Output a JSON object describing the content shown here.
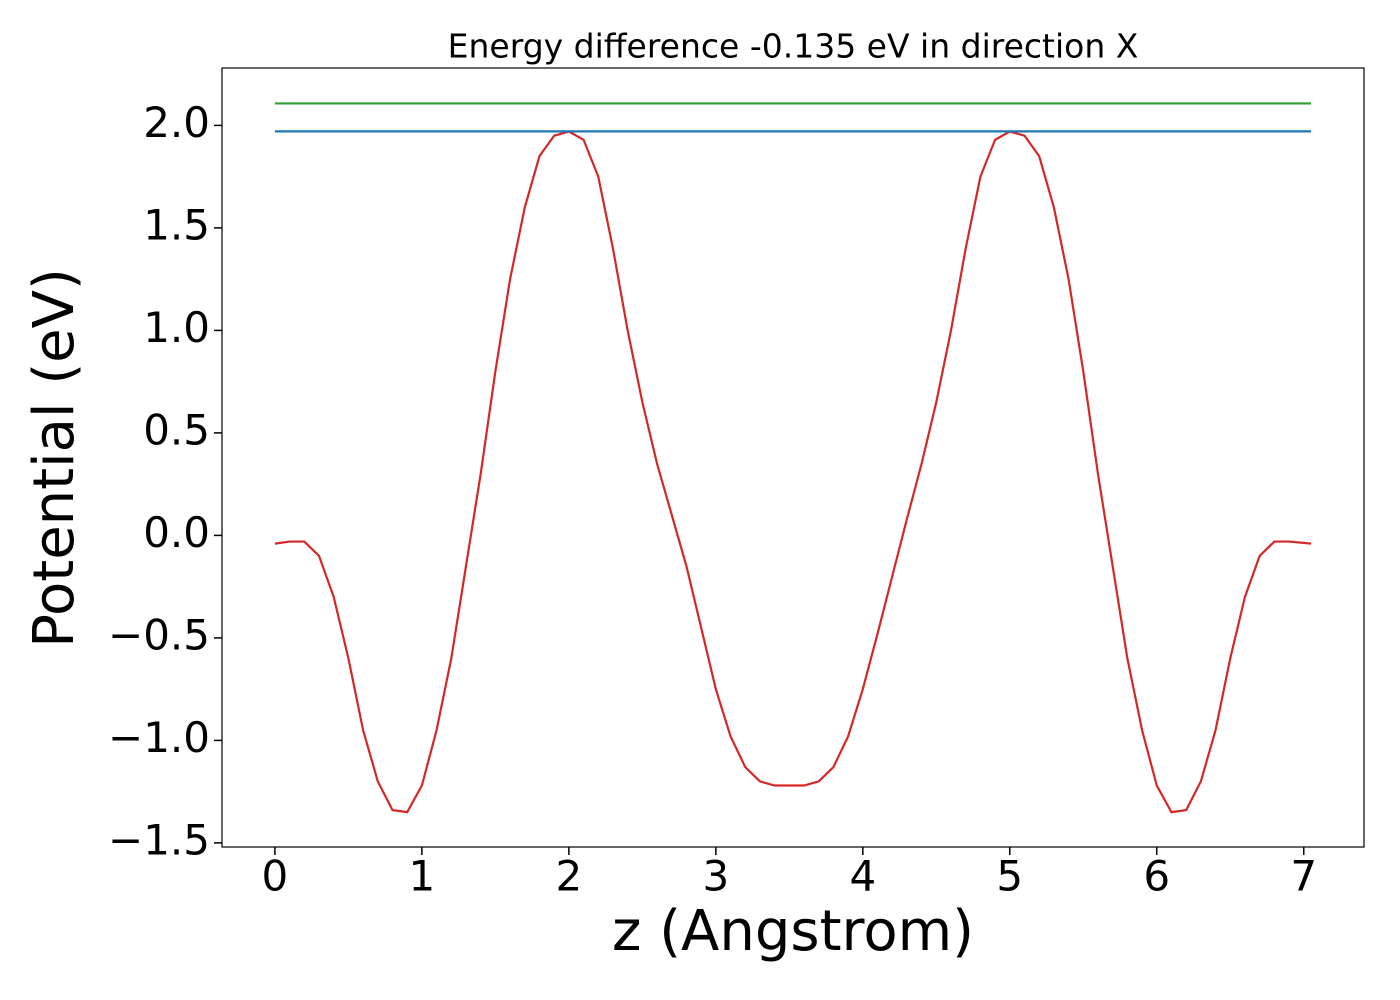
{
  "chart_data": {
    "type": "line",
    "title": "Energy difference -0.135 eV in direction X",
    "xlabel": "z (Angstrom)",
    "ylabel": "Potential (eV)",
    "xlim": [
      -0.36,
      7.41
    ],
    "ylim": [
      -1.52,
      2.28
    ],
    "xticks": [
      0,
      1,
      2,
      3,
      4,
      5,
      6,
      7
    ],
    "yticks": [
      {
        "value": -1.5,
        "label": "−1.5"
      },
      {
        "value": -1.0,
        "label": "−1.0"
      },
      {
        "value": -0.5,
        "label": "−0.5"
      },
      {
        "value": 0,
        "label": "0.0"
      },
      0.5,
      {
        "value": 1.0,
        "label": "1.0"
      },
      1.5,
      {
        "value": 2.0,
        "label": "2.0"
      }
    ],
    "series": [
      {
        "color": "#d62728",
        "x": [
          0.0,
          0.1,
          0.2,
          0.3,
          0.4,
          0.5,
          0.6,
          0.7,
          0.8,
          0.9,
          1.0,
          1.1,
          1.2,
          1.3,
          1.4,
          1.5,
          1.6,
          1.7,
          1.8,
          1.9,
          2.0,
          2.1,
          2.2,
          2.3,
          2.4,
          2.5,
          2.6,
          2.7,
          2.8,
          2.9,
          3.0,
          3.1,
          3.2,
          3.3,
          3.4,
          3.5,
          3.6,
          3.7,
          3.8,
          3.9,
          4.0,
          4.1,
          4.2,
          4.3,
          4.4,
          4.5,
          4.6,
          4.7,
          4.8,
          4.9,
          5.0,
          5.1,
          5.2,
          5.3,
          5.4,
          5.5,
          5.6,
          5.7,
          5.8,
          5.9,
          6.0,
          6.1,
          6.2,
          6.3,
          6.4,
          6.5,
          6.6,
          6.7,
          6.8,
          6.9,
          7.05
        ],
        "values": [
          -0.04,
          -0.03,
          -0.03,
          -0.1,
          -0.3,
          -0.6,
          -0.95,
          -1.2,
          -1.34,
          -1.35,
          -1.22,
          -0.95,
          -0.6,
          -0.15,
          0.3,
          0.8,
          1.25,
          1.6,
          1.85,
          1.95,
          1.97,
          1.93,
          1.75,
          1.4,
          1.0,
          0.65,
          0.35,
          0.1,
          -0.15,
          -0.45,
          -0.75,
          -0.98,
          -1.13,
          -1.2,
          -1.22,
          -1.22,
          -1.22,
          -1.2,
          -1.13,
          -0.98,
          -0.75,
          -0.48,
          -0.2,
          0.08,
          0.35,
          0.65,
          1.0,
          1.4,
          1.75,
          1.93,
          1.97,
          1.95,
          1.85,
          1.6,
          1.25,
          0.8,
          0.3,
          -0.15,
          -0.6,
          -0.95,
          -1.22,
          -1.35,
          -1.34,
          -1.2,
          -0.95,
          -0.6,
          -0.3,
          -0.1,
          -0.03,
          -0.03,
          -0.04
        ]
      },
      {
        "color": "#1f77b4",
        "x": [
          0,
          7.05
        ],
        "values": [
          1.971,
          1.971
        ]
      },
      {
        "color": "#2ca02c",
        "x": [
          0,
          7.05
        ],
        "values": [
          2.107,
          2.107
        ]
      }
    ]
  }
}
